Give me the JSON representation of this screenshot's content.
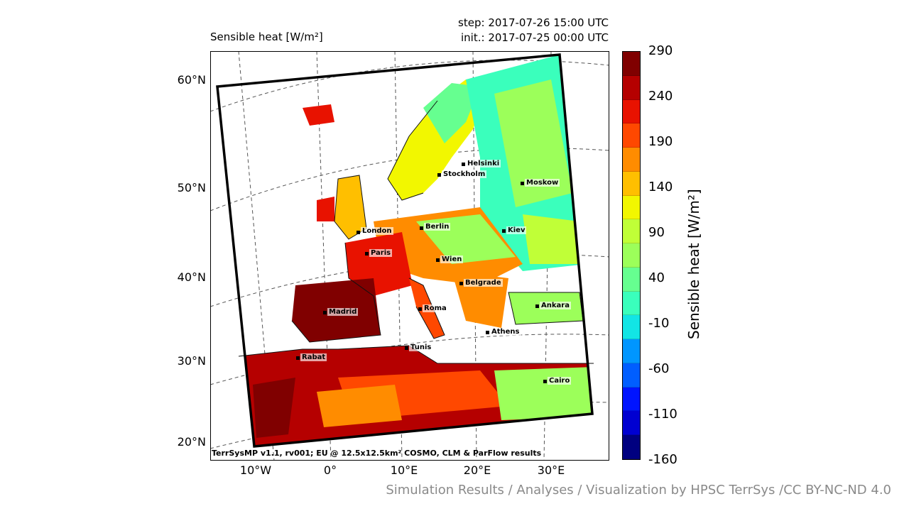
{
  "header": {
    "title": "Sensible heat [W/m²]",
    "step": "step: 2017-07-26 15:00 UTC",
    "init": "init.: 2017-07-25 00:00 UTC"
  },
  "colorbar": {
    "label": "Sensible heat [W/m²]",
    "ticks": [
      "290",
      "240",
      "190",
      "140",
      "90",
      "40",
      "-10",
      "-60",
      "-110",
      "-160"
    ],
    "colors": [
      "#800000",
      "#b50000",
      "#e81200",
      "#ff4800",
      "#ff8c00",
      "#ffbf00",
      "#f2f700",
      "#c0ff37",
      "#9cff5a",
      "#66ff90",
      "#3affbc",
      "#12e5e5",
      "#0096ff",
      "#005eff",
      "#0014ff",
      "#0000d1",
      "#000080"
    ]
  },
  "axes": {
    "lat_labels": [
      "60°N",
      "50°N",
      "40°N",
      "30°N",
      "20°N"
    ],
    "lon_labels": [
      "10°W",
      "0°",
      "10°E",
      "20°E",
      "30°E"
    ]
  },
  "cities": [
    {
      "name": "Helsinki"
    },
    {
      "name": "Stockholm"
    },
    {
      "name": "Moskow"
    },
    {
      "name": "London"
    },
    {
      "name": "Berlin"
    },
    {
      "name": "Kiev"
    },
    {
      "name": "Paris"
    },
    {
      "name": "Wien"
    },
    {
      "name": "Belgrade"
    },
    {
      "name": "Madrid"
    },
    {
      "name": "Roma"
    },
    {
      "name": "Ankara"
    },
    {
      "name": "Athens"
    },
    {
      "name": "Tunis"
    },
    {
      "name": "Rabat"
    },
    {
      "name": "Cairo"
    }
  ],
  "credit": "TerrSysMP v1.1, rv001; EU @ 12.5x12.5km² COSMO, CLM & ParFlow results",
  "footer": "Simulation Results / Analyses / Visualization by HPSC TerrSys /CC BY-NC-ND 4.0"
}
